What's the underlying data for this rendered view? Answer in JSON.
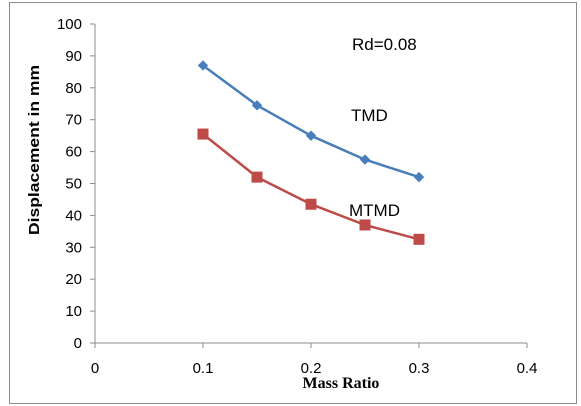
{
  "chart_data": {
    "type": "line",
    "title": "",
    "xlabel": "Mass Ratio",
    "ylabel": "Displacement in mm",
    "xlim": [
      0,
      0.4
    ],
    "ylim": [
      0,
      100
    ],
    "x_ticks": [
      "0",
      "0.1",
      "0.2",
      "0.3",
      "0.4"
    ],
    "y_ticks": [
      "0",
      "10",
      "20",
      "30",
      "40",
      "50",
      "60",
      "70",
      "80",
      "90",
      "100"
    ],
    "grid": false,
    "legend": "none",
    "annotations": {
      "rd": "Rd=0.08",
      "tmd": "TMD",
      "mtmd": "MTMD"
    },
    "series": [
      {
        "name": "TMD",
        "color": "#4a7ebb",
        "marker": "diamond",
        "x": [
          0.1,
          0.15,
          0.2,
          0.25,
          0.3
        ],
        "values": [
          87,
          74.5,
          65,
          57.5,
          52
        ]
      },
      {
        "name": "MTMD",
        "color": "#be4b48",
        "marker": "square",
        "x": [
          0.1,
          0.15,
          0.2,
          0.25,
          0.3
        ],
        "values": [
          65.5,
          52,
          43.5,
          37,
          32.5
        ]
      }
    ]
  }
}
